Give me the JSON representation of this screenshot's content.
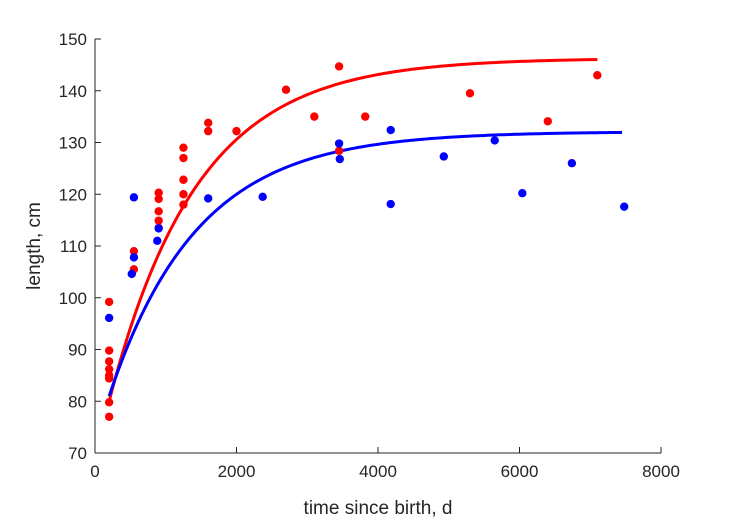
{
  "chart_data": {
    "type": "scatter",
    "title": "",
    "xlabel": "time since birth, d",
    "ylabel": "length, cm",
    "xlim": [
      0,
      8000
    ],
    "ylim": [
      70,
      150
    ],
    "xticks": [
      0,
      2000,
      4000,
      6000,
      8000
    ],
    "yticks": [
      70,
      80,
      90,
      100,
      110,
      120,
      130,
      140,
      150
    ],
    "grid": false,
    "legend": "none",
    "series": [
      {
        "color": "#ff0000",
        "points": [
          [
            200,
            99.2
          ],
          [
            200,
            89.8
          ],
          [
            200,
            87.7
          ],
          [
            200,
            86.2
          ],
          [
            200,
            85.0
          ],
          [
            200,
            84.4
          ],
          [
            200,
            79.8
          ],
          [
            200,
            77.0
          ],
          [
            550,
            109.0
          ],
          [
            550,
            105.5
          ],
          [
            900,
            120.3
          ],
          [
            900,
            119.1
          ],
          [
            900,
            116.7
          ],
          [
            900,
            114.9
          ],
          [
            900,
            113.5
          ],
          [
            1250,
            129.0
          ],
          [
            1250,
            127.0
          ],
          [
            1250,
            122.8
          ],
          [
            1250,
            120.0
          ],
          [
            1250,
            118.0
          ],
          [
            1600,
            133.8
          ],
          [
            1600,
            132.2
          ],
          [
            2000,
            132.2
          ],
          [
            2700,
            140.2
          ],
          [
            3100,
            135.0
          ],
          [
            3450,
            144.7
          ],
          [
            3450,
            128.4
          ],
          [
            3820,
            135.0
          ],
          [
            5300,
            139.5
          ],
          [
            6400,
            134.1
          ],
          [
            7100,
            143.0
          ]
        ],
        "curve": {
          "x": [
            200,
            7100
          ],
          "L0": 80,
          "Linf": 146.3,
          "k": 0.0008
        }
      },
      {
        "color": "#0000ff",
        "points": [
          [
            200,
            96.1
          ],
          [
            520,
            104.6
          ],
          [
            550,
            107.8
          ],
          [
            550,
            119.4
          ],
          [
            880,
            111.0
          ],
          [
            900,
            113.4
          ],
          [
            1600,
            119.2
          ],
          [
            2370,
            119.5
          ],
          [
            3450,
            129.8
          ],
          [
            3460,
            126.8
          ],
          [
            4180,
            132.4
          ],
          [
            4180,
            118.1
          ],
          [
            4930,
            127.3
          ],
          [
            5650,
            130.4
          ],
          [
            6040,
            120.2
          ],
          [
            6740,
            126.0
          ],
          [
            7480,
            117.6
          ]
        ],
        "curve": {
          "x": [
            200,
            7450
          ],
          "L0": 81,
          "Linf": 132.1,
          "k": 0.0008
        }
      }
    ]
  }
}
